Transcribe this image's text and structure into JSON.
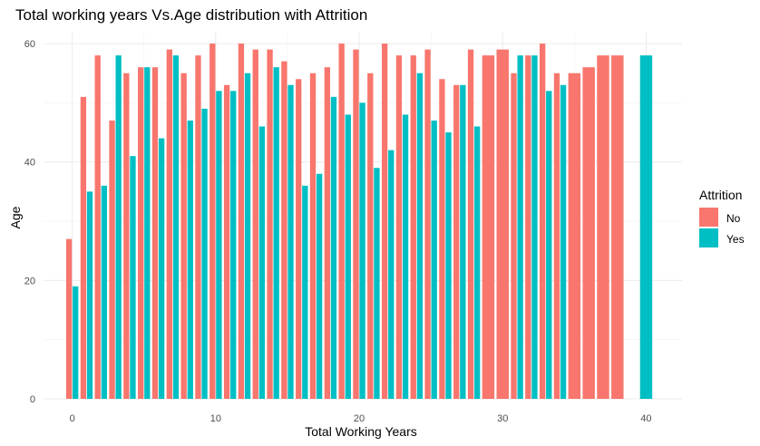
{
  "chart_data": {
    "type": "bar",
    "title": "Total working years Vs.Age distribution with Attrition",
    "xlabel": "Total Working Years",
    "ylabel": "Age",
    "xlim": [
      -2,
      42.5
    ],
    "ylim": [
      0,
      62
    ],
    "x_ticks": [
      0,
      10,
      20,
      30,
      40
    ],
    "y_ticks": [
      0,
      20,
      40,
      60
    ],
    "grid": true,
    "legend": {
      "title": "Attrition",
      "position": "right"
    },
    "colors": {
      "No": "#F8766D",
      "Yes": "#00BFC4"
    },
    "series": [
      {
        "name": "No",
        "x": [
          0,
          1,
          2,
          3,
          4,
          5,
          6,
          7,
          8,
          9,
          10,
          11,
          12,
          13,
          14,
          15,
          16,
          17,
          18,
          19,
          20,
          21,
          22,
          23,
          24,
          25,
          26,
          27,
          28,
          29,
          30,
          31,
          32,
          33,
          34,
          35,
          36,
          37,
          38
        ],
        "values": [
          27,
          51,
          58,
          47,
          55,
          56,
          56,
          59,
          55,
          58,
          60,
          53,
          60,
          59,
          59,
          57,
          54,
          55,
          56,
          60,
          59,
          55,
          60,
          58,
          58,
          59,
          54,
          53,
          59,
          58,
          59,
          55,
          58,
          60,
          55,
          55,
          56,
          58,
          58
        ]
      },
      {
        "name": "Yes",
        "x": [
          0,
          1,
          2,
          3,
          4,
          5,
          6,
          7,
          8,
          9,
          10,
          11,
          12,
          13,
          14,
          15,
          16,
          17,
          18,
          19,
          20,
          21,
          22,
          23,
          24,
          25,
          26,
          27,
          28,
          31,
          32,
          33,
          34,
          40
        ],
        "values": [
          19,
          35,
          36,
          58,
          41,
          56,
          44,
          58,
          47,
          49,
          52,
          52,
          55,
          46,
          56,
          53,
          36,
          38,
          51,
          48,
          50,
          39,
          42,
          48,
          55,
          47,
          45,
          53,
          46,
          58,
          58,
          52,
          53,
          58
        ]
      }
    ]
  }
}
